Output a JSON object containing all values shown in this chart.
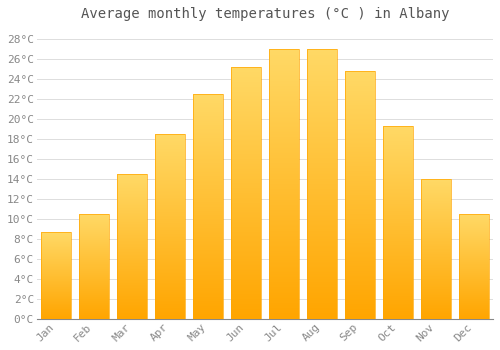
{
  "title": "Average monthly temperatures (°C ) in Albany",
  "months": [
    "Jan",
    "Feb",
    "Mar",
    "Apr",
    "May",
    "Jun",
    "Jul",
    "Aug",
    "Sep",
    "Oct",
    "Nov",
    "Dec"
  ],
  "temperatures": [
    8.7,
    10.5,
    14.5,
    18.5,
    22.5,
    25.2,
    27.0,
    27.0,
    24.8,
    19.3,
    14.0,
    10.5
  ],
  "bar_color_bottom": "#FFA500",
  "bar_color_top": "#FFD966",
  "background_color": "#FFFFFF",
  "grid_color": "#DDDDDD",
  "ylim": [
    0,
    29
  ],
  "ytick_step": 2,
  "title_fontsize": 10,
  "tick_fontsize": 8,
  "font_family": "monospace"
}
